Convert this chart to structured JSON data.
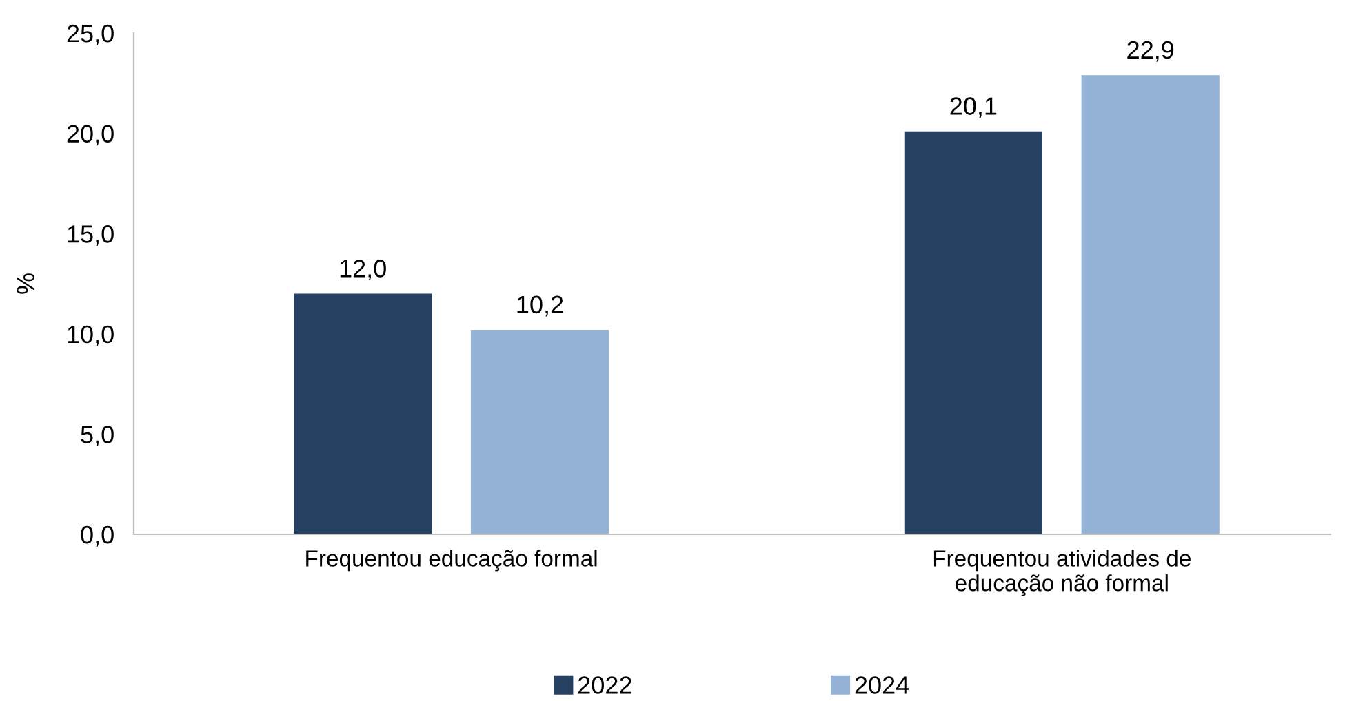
{
  "chart_data": {
    "type": "bar",
    "ylabel": "%",
    "categories": [
      "Frequentou educação formal",
      "Frequentou atividades de\neducação não formal"
    ],
    "series": [
      {
        "name": "2022",
        "color": "#264061",
        "values": [
          12.0,
          20.1
        ],
        "value_labels": [
          "12,0",
          "20,1"
        ]
      },
      {
        "name": "2024",
        "color": "#95b3d7",
        "values": [
          10.2,
          22.9
        ],
        "value_labels": [
          "10,2",
          "22,9"
        ]
      }
    ],
    "ylim": [
      0,
      25
    ],
    "yticks": [
      {
        "value": 0,
        "label": "0,0"
      },
      {
        "value": 5,
        "label": "5,0"
      },
      {
        "value": 10,
        "label": "10,0"
      },
      {
        "value": 15,
        "label": "15,0"
      },
      {
        "value": 20,
        "label": "20,0"
      },
      {
        "value": 25,
        "label": "25,0"
      }
    ],
    "grid": false,
    "legend": "bottom"
  }
}
